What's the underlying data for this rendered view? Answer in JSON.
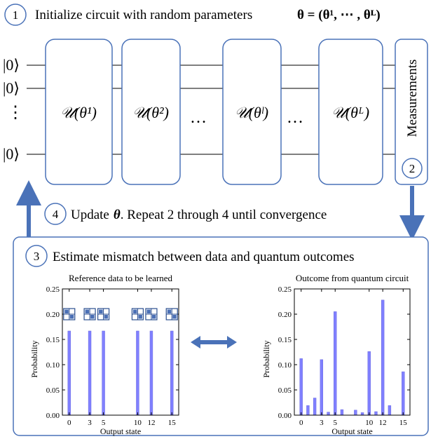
{
  "colors": {
    "box_stroke": "#4a72b8",
    "arrow": "#4a72b8",
    "bar": "#8080ff",
    "icon_fill": "#4a6fb5",
    "wire": "#333333",
    "text": "#000000"
  },
  "step1": {
    "number": "1",
    "text": "Initialize circuit with random parameters",
    "formula": "θ = (θ¹, ⋯ , θᴸ)"
  },
  "circuit": {
    "inputs": [
      "|0⟩",
      "|0⟩",
      "⋮",
      "|0⟩"
    ],
    "blocks": [
      "𝒰(θ¹)",
      "𝒰(θ²)",
      "𝒰(θˡ)",
      "𝒰(θᴸ)"
    ],
    "ellipsis": [
      "…",
      "…"
    ],
    "measurement_label": "Measurements",
    "measurement_step": "2"
  },
  "step4": {
    "number": "4",
    "text_before": "Update",
    "theta": "θ",
    "text_after": ". Repeat 2 through 4 until convergence"
  },
  "step3": {
    "number": "3",
    "text": "Estimate mismatch between data and quantum outcomes"
  },
  "chart_data": [
    {
      "type": "bar",
      "title": "Reference data to be learned",
      "xlabel": "Output state",
      "ylabel": "Probability",
      "ylim": [
        0,
        0.25
      ],
      "yticks": [
        "0.00",
        "0.05",
        "0.10",
        "0.15",
        "0.20",
        "0.25"
      ],
      "xticks": [
        "0",
        "3",
        "5",
        "10",
        "12",
        "15"
      ],
      "x": [
        0,
        3,
        5,
        10,
        12,
        15
      ],
      "values": [
        0.1667,
        0.1667,
        0.1667,
        0.1667,
        0.1667,
        0.1667
      ],
      "icons": [
        [
          0
        ],
        [
          3,
          5
        ],
        [
          10,
          12
        ],
        [
          15
        ]
      ]
    },
    {
      "type": "bar",
      "title": "Outcome from quantum circuit",
      "xlabel": "Output state",
      "ylabel": "Probability",
      "ylim": [
        0,
        0.25
      ],
      "yticks": [
        "0.00",
        "0.05",
        "0.10",
        "0.15",
        "0.20",
        "0.25"
      ],
      "xticks": [
        "0",
        "3",
        "5",
        "10",
        "12",
        "15"
      ],
      "x": [
        0,
        1,
        2,
        3,
        4,
        5,
        6,
        8,
        9,
        10,
        11,
        12,
        13,
        15
      ],
      "values": [
        0.112,
        0.019,
        0.034,
        0.11,
        0.006,
        0.205,
        0.011,
        0.01,
        0.005,
        0.126,
        0.007,
        0.228,
        0.019,
        0.086
      ]
    }
  ]
}
